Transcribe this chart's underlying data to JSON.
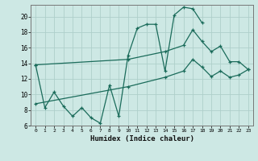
{
  "xlabel": "Humidex (Indice chaleur)",
  "bg_color": "#cde8e4",
  "grid_color": "#aecfca",
  "line_color": "#1a6b5a",
  "xlim": [
    -0.5,
    23.5
  ],
  "ylim": [
    6,
    21.5
  ],
  "yticks": [
    6,
    8,
    10,
    12,
    14,
    16,
    18,
    20
  ],
  "xticks": [
    0,
    1,
    2,
    3,
    4,
    5,
    6,
    7,
    8,
    9,
    10,
    11,
    12,
    13,
    14,
    15,
    16,
    17,
    18,
    19,
    20,
    21,
    22,
    23
  ],
  "line1_x": [
    0,
    1,
    2,
    3,
    4,
    5,
    6,
    7,
    8,
    9,
    10,
    11,
    12,
    13,
    14,
    15,
    16,
    17,
    18
  ],
  "line1_y": [
    13.8,
    8.3,
    10.3,
    8.5,
    7.2,
    8.3,
    7.0,
    6.3,
    11.2,
    7.2,
    15.0,
    18.5,
    19.0,
    19.0,
    13.0,
    20.2,
    21.2,
    21.0,
    19.2
  ],
  "line2_x": [
    0,
    10,
    14,
    16,
    17,
    18,
    19,
    20,
    21,
    22,
    23
  ],
  "line2_y": [
    13.8,
    14.5,
    15.5,
    16.3,
    18.3,
    16.8,
    15.5,
    16.2,
    14.2,
    14.2,
    13.2
  ],
  "line3_x": [
    0,
    10,
    14,
    16,
    17,
    18,
    19,
    20,
    21,
    22,
    23
  ],
  "line3_y": [
    8.8,
    11.0,
    12.2,
    13.0,
    14.5,
    13.5,
    12.3,
    13.0,
    12.2,
    12.5,
    13.2
  ]
}
